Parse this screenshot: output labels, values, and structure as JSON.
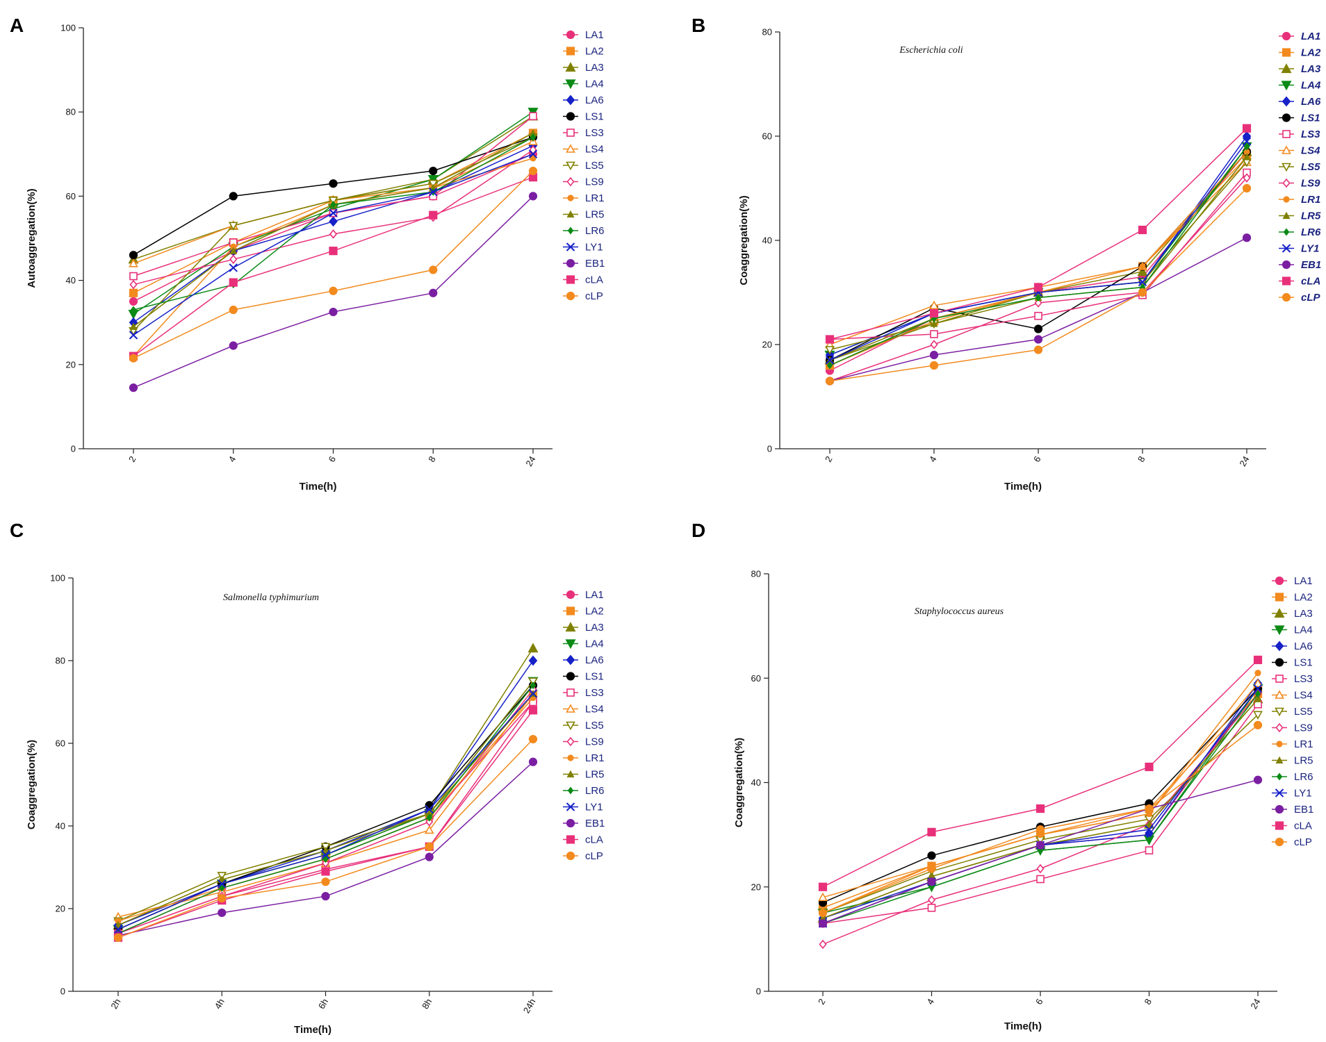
{
  "figure": {
    "strains": [
      "LA1",
      "LA2",
      "LA3",
      "LA4",
      "LA6",
      "LS1",
      "LS3",
      "LS4",
      "LS5",
      "LS9",
      "LR1",
      "LR5",
      "LR6",
      "LY1",
      "EB1",
      "cLA",
      "cLP"
    ],
    "markers": [
      "circle",
      "square",
      "triangle",
      "triangle-down",
      "diamond",
      "circle",
      "square-open",
      "triangle-open",
      "triangle-down-open",
      "diamond-open",
      "circle-small",
      "triangle-small",
      "diamond-small",
      "x",
      "circle",
      "square",
      "circle"
    ],
    "colors": [
      "#e8307a",
      "#f28a1e",
      "#808000",
      "#0b8a16",
      "#1621c8",
      "#000000",
      "#e8307a",
      "#f28a1e",
      "#808000",
      "#e8307a",
      "#f28a1e",
      "#808000",
      "#0b8a16",
      "#1621c8",
      "#7b1fa2",
      "#e8307a",
      "#f28a1e"
    ]
  },
  "chart_data": [
    {
      "panel": "A",
      "type": "line",
      "title": "",
      "xlabel": "Time(h)",
      "ylabel": "Autoaggregation(%)",
      "categories": [
        "2",
        "4",
        "6",
        "8",
        "24"
      ],
      "ylim": [
        0,
        100
      ],
      "yticks": [
        "0",
        "20",
        "40",
        "60",
        "80",
        "100"
      ],
      "legend_style": "normal",
      "series": [
        {
          "name": "LA1",
          "values": [
            35,
            47,
            56,
            60,
            70
          ]
        },
        {
          "name": "LA2",
          "values": [
            37,
            49,
            59,
            63,
            75
          ]
        },
        {
          "name": "LA3",
          "values": [
            45,
            53,
            59,
            64,
            79
          ]
        },
        {
          "name": "LA4",
          "values": [
            32,
            48,
            57,
            64,
            80
          ]
        },
        {
          "name": "LA6",
          "values": [
            30,
            47,
            54,
            61,
            72
          ]
        },
        {
          "name": "LS1",
          "values": [
            46,
            60,
            63,
            66,
            74
          ]
        },
        {
          "name": "LS3",
          "values": [
            41,
            49,
            56,
            60,
            79
          ]
        },
        {
          "name": "LS4",
          "values": [
            44,
            53,
            59,
            62,
            73
          ]
        },
        {
          "name": "LS5",
          "values": [
            28,
            53,
            59,
            63,
            74
          ]
        },
        {
          "name": "LS9",
          "values": [
            39,
            45,
            51,
            55,
            71
          ]
        },
        {
          "name": "LR1",
          "values": [
            22,
            48,
            58,
            62,
            69
          ]
        },
        {
          "name": "LR5",
          "values": [
            29,
            47,
            58,
            62,
            75
          ]
        },
        {
          "name": "LR6",
          "values": [
            33,
            39,
            58,
            61,
            74
          ]
        },
        {
          "name": "LY1",
          "values": [
            27,
            43,
            56,
            61,
            70
          ]
        },
        {
          "name": "EB1",
          "values": [
            14.5,
            24.5,
            32.5,
            37,
            60
          ]
        },
        {
          "name": "cLA",
          "values": [
            22,
            39.5,
            47,
            55.5,
            64.5
          ]
        },
        {
          "name": "cLP",
          "values": [
            21.5,
            33,
            37.5,
            42.5,
            66
          ]
        }
      ]
    },
    {
      "panel": "B",
      "type": "line",
      "title": "Escherichia coli",
      "xlabel": "Time(h)",
      "ylabel": "Coaggregation(%)",
      "categories": [
        "2",
        "4",
        "6",
        "8",
        "24"
      ],
      "ylim": [
        0,
        80
      ],
      "yticks": [
        "0",
        "20",
        "40",
        "60",
        "80"
      ],
      "legend_style": "bold-italic",
      "series": [
        {
          "name": "LA1",
          "values": [
            15,
            25,
            30,
            33,
            57
          ]
        },
        {
          "name": "LA2",
          "values": [
            16,
            24.5,
            30,
            35,
            56
          ]
        },
        {
          "name": "LA3",
          "values": [
            17,
            25,
            30,
            34,
            57
          ]
        },
        {
          "name": "LA4",
          "values": [
            18,
            26,
            30,
            32,
            58
          ]
        },
        {
          "name": "LA6",
          "values": [
            18,
            26,
            30,
            32,
            60
          ]
        },
        {
          "name": "LS1",
          "values": [
            17,
            27,
            23,
            35,
            57
          ]
        },
        {
          "name": "LS3",
          "values": [
            21,
            22,
            25.5,
            29.5,
            53
          ]
        },
        {
          "name": "LS4",
          "values": [
            20,
            27.5,
            31,
            35,
            55
          ]
        },
        {
          "name": "LS5",
          "values": [
            19,
            24,
            30,
            32,
            55
          ]
        },
        {
          "name": "LS9",
          "values": [
            13,
            20,
            28,
            30,
            52
          ]
        },
        {
          "name": "LR1",
          "values": [
            16,
            25,
            30,
            35,
            57
          ]
        },
        {
          "name": "LR5",
          "values": [
            17,
            24,
            29,
            31,
            56
          ]
        },
        {
          "name": "LR6",
          "values": [
            16,
            25,
            29,
            31,
            58
          ]
        },
        {
          "name": "LY1",
          "values": [
            17,
            26,
            30,
            32,
            59
          ]
        },
        {
          "name": "EB1",
          "values": [
            13,
            18,
            21,
            30,
            40.5
          ]
        },
        {
          "name": "cLA",
          "values": [
            21,
            26,
            31,
            42,
            61.5
          ]
        },
        {
          "name": "cLP",
          "values": [
            13,
            16,
            19,
            30,
            50
          ]
        }
      ]
    },
    {
      "panel": "C",
      "type": "line",
      "title": "Salmonella typhimurium",
      "xlabel": "Time(h)",
      "ylabel": "Coaggregation(%)",
      "categories": [
        "2h",
        "4h",
        "6h",
        "8h",
        "24h"
      ],
      "ylim": [
        0,
        100
      ],
      "yticks": [
        "0",
        "20",
        "40",
        "60",
        "80",
        "100"
      ],
      "legend_style": "normal",
      "series": [
        {
          "name": "LA1",
          "values": [
            14,
            25,
            32,
            42,
            70
          ]
        },
        {
          "name": "LA2",
          "values": [
            15,
            26,
            33,
            43,
            72
          ]
        },
        {
          "name": "LA3",
          "values": [
            16,
            27,
            34,
            44,
            83
          ]
        },
        {
          "name": "LA4",
          "values": [
            15,
            26,
            33,
            43,
            75
          ]
        },
        {
          "name": "LA6",
          "values": [
            16,
            26,
            34,
            44,
            80
          ]
        },
        {
          "name": "LS1",
          "values": [
            15,
            26,
            35,
            45,
            74
          ]
        },
        {
          "name": "LS3",
          "values": [
            14,
            23,
            29.5,
            35,
            70
          ]
        },
        {
          "name": "LS4",
          "values": [
            18,
            24,
            31,
            39,
            72
          ]
        },
        {
          "name": "LS5",
          "values": [
            17,
            28,
            35,
            43,
            75
          ]
        },
        {
          "name": "LS9",
          "values": [
            14,
            23,
            31,
            41,
            73
          ]
        },
        {
          "name": "LR1",
          "values": [
            17,
            25,
            32,
            42,
            71
          ]
        },
        {
          "name": "LR5",
          "values": [
            16,
            27,
            34,
            43,
            72
          ]
        },
        {
          "name": "LR6",
          "values": [
            14,
            25,
            32,
            42,
            74
          ]
        },
        {
          "name": "LY1",
          "values": [
            15,
            26,
            33,
            44,
            72
          ]
        },
        {
          "name": "EB1",
          "values": [
            13.5,
            19,
            23,
            32.5,
            55.5
          ]
        },
        {
          "name": "cLA",
          "values": [
            13,
            22,
            29,
            35,
            68
          ]
        },
        {
          "name": "cLP",
          "values": [
            13,
            22.5,
            26.5,
            35,
            61
          ]
        }
      ]
    },
    {
      "panel": "D",
      "type": "line",
      "title": "Staphylococcus aureus",
      "xlabel": "Time(h)",
      "ylabel": "Coaggregation(%)",
      "categories": [
        "2",
        "4",
        "6",
        "8",
        "24"
      ],
      "ylim": [
        0,
        80
      ],
      "yticks": [
        "0",
        "20",
        "40",
        "60",
        "80"
      ],
      "legend_style": "normal",
      "series": [
        {
          "name": "LA1",
          "values": [
            13,
            21,
            28,
            30,
            58
          ]
        },
        {
          "name": "LA2",
          "values": [
            16,
            24,
            30,
            35,
            57
          ]
        },
        {
          "name": "LA3",
          "values": [
            14,
            22,
            28,
            32,
            56
          ]
        },
        {
          "name": "LA4",
          "values": [
            15,
            20,
            27,
            29,
            58
          ]
        },
        {
          "name": "LA6",
          "values": [
            14,
            21,
            28,
            30,
            59
          ]
        },
        {
          "name": "LS1",
          "values": [
            17,
            26,
            31.5,
            36,
            58
          ]
        },
        {
          "name": "LS3",
          "values": [
            13,
            16,
            21.5,
            27,
            55
          ]
        },
        {
          "name": "LS4",
          "values": [
            18,
            24,
            30,
            34,
            59
          ]
        },
        {
          "name": "LS5",
          "values": [
            15,
            23,
            29,
            33,
            53
          ]
        },
        {
          "name": "LS9",
          "values": [
            9,
            17.5,
            23.5,
            32,
            57
          ]
        },
        {
          "name": "LR1",
          "values": [
            15,
            24,
            30,
            34,
            61
          ]
        },
        {
          "name": "LR5",
          "values": [
            14,
            22,
            28,
            32,
            56
          ]
        },
        {
          "name": "LR6",
          "values": [
            13,
            20,
            27,
            29,
            57
          ]
        },
        {
          "name": "LY1",
          "values": [
            13,
            21,
            28,
            31,
            58
          ]
        },
        {
          "name": "EB1",
          "values": [
            13,
            21,
            28,
            35,
            40.5
          ]
        },
        {
          "name": "cLA",
          "values": [
            20,
            30.5,
            35,
            43,
            63.5
          ]
        },
        {
          "name": "cLP",
          "values": [
            15,
            23.5,
            31,
            35,
            51
          ]
        }
      ]
    }
  ]
}
